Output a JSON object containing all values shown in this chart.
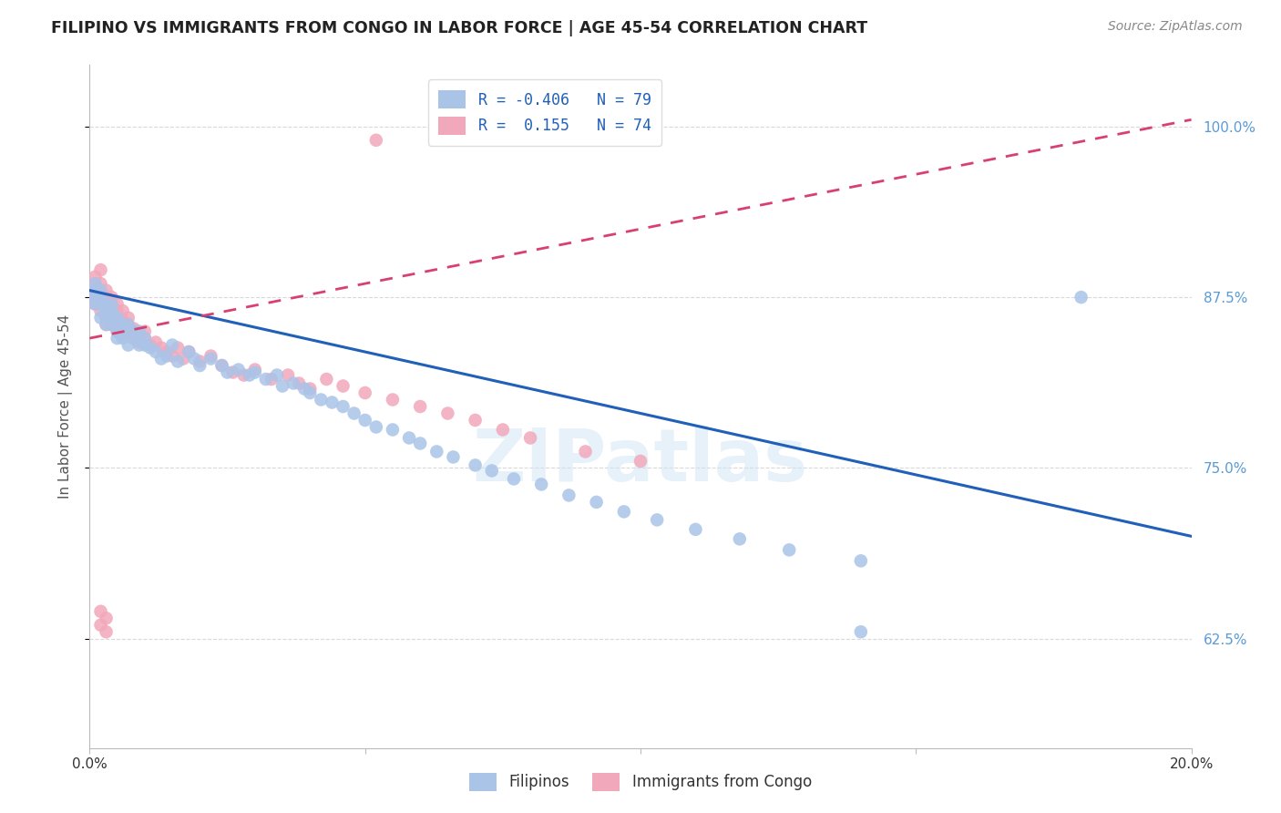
{
  "title": "FILIPINO VS IMMIGRANTS FROM CONGO IN LABOR FORCE | AGE 45-54 CORRELATION CHART",
  "source": "Source: ZipAtlas.com",
  "ylabel": "In Labor Force | Age 45-54",
  "xmin": 0.0,
  "xmax": 0.2,
  "ymin": 0.545,
  "ymax": 1.045,
  "yticks": [
    0.625,
    0.75,
    0.875,
    1.0
  ],
  "ytick_labels": [
    "62.5%",
    "75.0%",
    "87.5%",
    "100.0%"
  ],
  "filipinos_R": -0.406,
  "filipinos_N": 79,
  "congo_R": 0.155,
  "congo_N": 74,
  "dot_color_filipinos": "#aac4e8",
  "dot_color_congo": "#f2a8bb",
  "line_color_filipinos": "#2060b8",
  "line_color_congo": "#d84070",
  "background_color": "#ffffff",
  "grid_color": "#d0d0d0",
  "title_color": "#222222",
  "axis_label_color": "#555555",
  "right_axis_color": "#5b9bd5",
  "legend_label_filipinos": "Filipinos",
  "legend_label_congo": "Immigrants from Congo",
  "watermark": "ZIPatlas",
  "fil_trend_x0": 0.0,
  "fil_trend_x1": 0.2,
  "fil_trend_y0": 0.88,
  "fil_trend_y1": 0.7,
  "con_trend_x0": 0.0,
  "con_trend_x1": 0.2,
  "con_trend_y0": 0.845,
  "con_trend_y1": 1.005,
  "filipinos_x": [
    0.001,
    0.001,
    0.001,
    0.001,
    0.002,
    0.002,
    0.002,
    0.002,
    0.002,
    0.003,
    0.003,
    0.003,
    0.003,
    0.003,
    0.004,
    0.004,
    0.004,
    0.004,
    0.005,
    0.005,
    0.005,
    0.005,
    0.006,
    0.006,
    0.006,
    0.007,
    0.007,
    0.008,
    0.008,
    0.009,
    0.009,
    0.01,
    0.01,
    0.011,
    0.012,
    0.013,
    0.014,
    0.015,
    0.016,
    0.018,
    0.019,
    0.02,
    0.022,
    0.024,
    0.025,
    0.027,
    0.029,
    0.03,
    0.032,
    0.034,
    0.035,
    0.037,
    0.039,
    0.04,
    0.042,
    0.044,
    0.046,
    0.048,
    0.05,
    0.052,
    0.055,
    0.058,
    0.06,
    0.063,
    0.066,
    0.07,
    0.073,
    0.077,
    0.082,
    0.087,
    0.092,
    0.097,
    0.103,
    0.11,
    0.118,
    0.127,
    0.14,
    0.18,
    0.14
  ],
  "filipinos_y": [
    0.875,
    0.88,
    0.885,
    0.87,
    0.875,
    0.88,
    0.86,
    0.87,
    0.875,
    0.865,
    0.87,
    0.855,
    0.86,
    0.865,
    0.86,
    0.855,
    0.87,
    0.865,
    0.86,
    0.855,
    0.85,
    0.845,
    0.855,
    0.85,
    0.845,
    0.855,
    0.84,
    0.85,
    0.845,
    0.84,
    0.85,
    0.845,
    0.84,
    0.838,
    0.835,
    0.83,
    0.832,
    0.84,
    0.828,
    0.835,
    0.83,
    0.825,
    0.83,
    0.825,
    0.82,
    0.822,
    0.818,
    0.82,
    0.815,
    0.818,
    0.81,
    0.812,
    0.808,
    0.805,
    0.8,
    0.798,
    0.795,
    0.79,
    0.785,
    0.78,
    0.778,
    0.772,
    0.768,
    0.762,
    0.758,
    0.752,
    0.748,
    0.742,
    0.738,
    0.73,
    0.725,
    0.718,
    0.712,
    0.705,
    0.698,
    0.69,
    0.682,
    0.875,
    0.63
  ],
  "congo_x": [
    0.001,
    0.001,
    0.001,
    0.001,
    0.001,
    0.002,
    0.002,
    0.002,
    0.002,
    0.002,
    0.002,
    0.003,
    0.003,
    0.003,
    0.003,
    0.003,
    0.003,
    0.004,
    0.004,
    0.004,
    0.004,
    0.004,
    0.005,
    0.005,
    0.005,
    0.005,
    0.005,
    0.006,
    0.006,
    0.006,
    0.006,
    0.007,
    0.007,
    0.007,
    0.008,
    0.008,
    0.009,
    0.009,
    0.01,
    0.01,
    0.011,
    0.012,
    0.013,
    0.014,
    0.015,
    0.016,
    0.017,
    0.018,
    0.02,
    0.022,
    0.024,
    0.026,
    0.028,
    0.03,
    0.033,
    0.036,
    0.038,
    0.04,
    0.043,
    0.046,
    0.05,
    0.055,
    0.06,
    0.065,
    0.07,
    0.075,
    0.08,
    0.09,
    0.1,
    0.002,
    0.003,
    0.002,
    0.003,
    0.052
  ],
  "congo_y": [
    0.88,
    0.875,
    0.87,
    0.885,
    0.89,
    0.875,
    0.88,
    0.87,
    0.885,
    0.865,
    0.895,
    0.87,
    0.875,
    0.865,
    0.86,
    0.855,
    0.88,
    0.87,
    0.865,
    0.86,
    0.855,
    0.875,
    0.865,
    0.87,
    0.86,
    0.855,
    0.85,
    0.865,
    0.858,
    0.852,
    0.848,
    0.86,
    0.855,
    0.848,
    0.852,
    0.845,
    0.848,
    0.842,
    0.845,
    0.85,
    0.84,
    0.842,
    0.838,
    0.835,
    0.832,
    0.838,
    0.83,
    0.835,
    0.828,
    0.832,
    0.825,
    0.82,
    0.818,
    0.822,
    0.815,
    0.818,
    0.812,
    0.808,
    0.815,
    0.81,
    0.805,
    0.8,
    0.795,
    0.79,
    0.785,
    0.778,
    0.772,
    0.762,
    0.755,
    0.645,
    0.64,
    0.635,
    0.63,
    0.99
  ]
}
